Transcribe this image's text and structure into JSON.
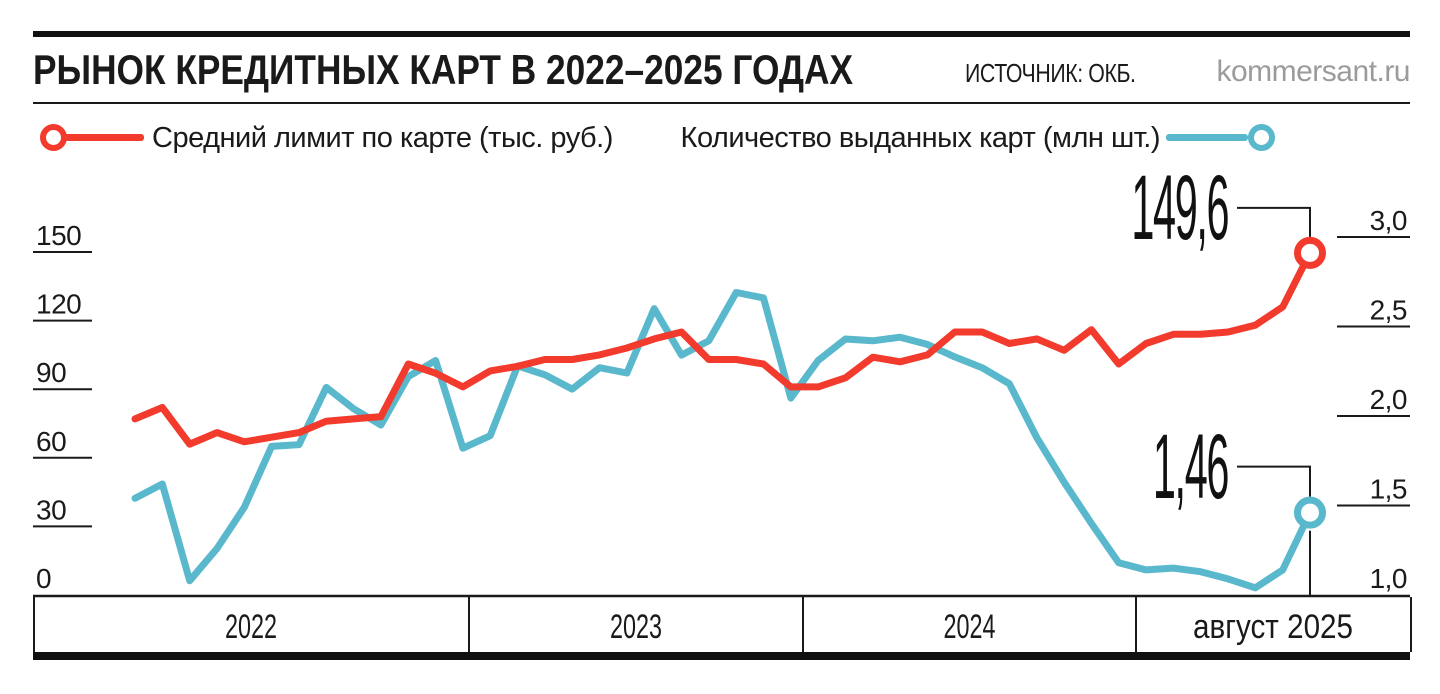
{
  "header": {
    "title": "РЫНОК КРЕДИТНЫХ КАРТ В 2022–2025 ГОДАХ",
    "source": "ИСТОЧНИК: ОКБ.",
    "site": "kommersant.ru"
  },
  "legend": {
    "left": {
      "label": "Средний лимит по карте (тыс. руб.)",
      "color": "#f23b2d"
    },
    "right": {
      "label": "Количество выданных карт (млн шт.)",
      "color": "#5ab8cd"
    }
  },
  "chart_data": {
    "type": "line",
    "title": "РЫНОК КРЕДИТНЫХ КАРТ В 2022–2025 ГОДАХ",
    "source": "ИСТОЧНИК: ОКБ.",
    "x_sections": [
      "2022",
      "2023",
      "2024",
      "август 2025"
    ],
    "months_per_section": [
      12,
      12,
      12,
      8
    ],
    "grid": "off",
    "legend_position": "top",
    "left_axis": {
      "label": "Средний лимит по карте (тыс. руб.)",
      "min": 0,
      "max": 150,
      "ticks": [
        150,
        120,
        90,
        60,
        30,
        0
      ]
    },
    "right_axis": {
      "label": "Количество выданных карт (млн шт.)",
      "min": 1.0,
      "max": 3.0,
      "ticks": [
        {
          "v": 3.0,
          "label": "3,0"
        },
        {
          "v": 2.5,
          "label": "2,5"
        },
        {
          "v": 2.0,
          "label": "2,0"
        },
        {
          "v": 1.5,
          "label": "1,5"
        },
        {
          "v": 1.0,
          "label": "1,0"
        }
      ]
    },
    "series": [
      {
        "name": "Средний лимит по карте (тыс. руб.)",
        "color": "#f23b2d",
        "axis": "left",
        "end_label": "149,6",
        "end_value": 149.6,
        "values": [
          77,
          82,
          66,
          71,
          67,
          69,
          71,
          76,
          77,
          78,
          101,
          97,
          91,
          98,
          100,
          103,
          103,
          105,
          108,
          112,
          115,
          103,
          103,
          101,
          91,
          91,
          95,
          104,
          102,
          105,
          115,
          115,
          110,
          112,
          107,
          116,
          101,
          110,
          114,
          114,
          115,
          118,
          126,
          149.6
        ]
      },
      {
        "name": "Количество выданных карт (млн шт.)",
        "color": "#5ab8cd",
        "axis": "right",
        "end_label": "1,46",
        "end_value": 1.46,
        "values": [
          1.54,
          1.62,
          1.08,
          1.26,
          1.49,
          1.83,
          1.84,
          2.16,
          2.04,
          1.95,
          2.22,
          2.31,
          1.82,
          1.89,
          2.28,
          2.23,
          2.15,
          2.27,
          2.24,
          2.6,
          2.34,
          2.42,
          2.69,
          2.66,
          2.1,
          2.31,
          2.43,
          2.42,
          2.44,
          2.4,
          2.33,
          2.27,
          2.18,
          1.88,
          1.63,
          1.4,
          1.18,
          1.14,
          1.15,
          1.13,
          1.09,
          1.04,
          1.14,
          1.46
        ]
      }
    ]
  }
}
